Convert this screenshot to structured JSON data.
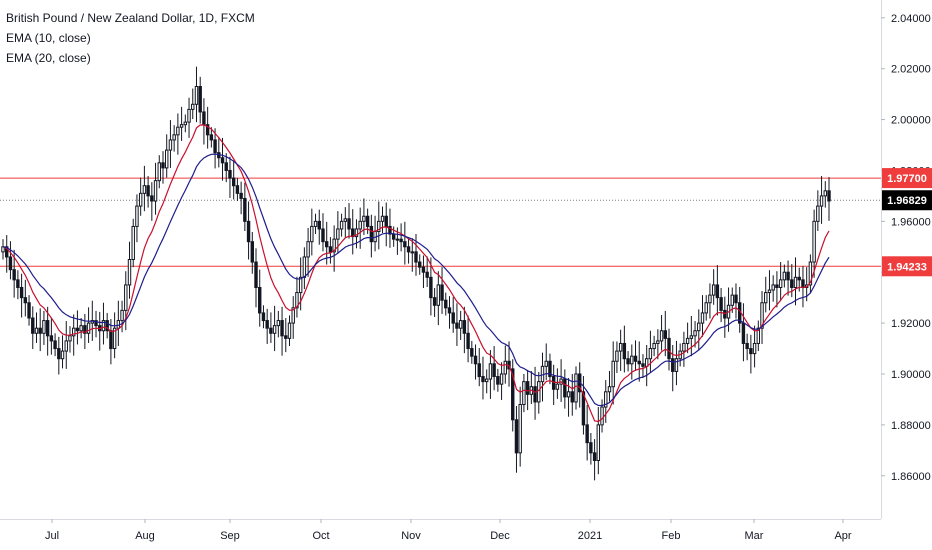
{
  "legend": {
    "title": "British Pound / New Zealand Dollar, 1D, FXCM",
    "ema10": "EMA (10, close)",
    "ema20": "EMA (20, close)"
  },
  "colors": {
    "up": "#131722",
    "down": "#131722",
    "ema10": "#c8102e",
    "ema20": "#1f1d8c",
    "level_line": "#ef3c3c",
    "last_price_badge": "#000000",
    "level_badge": "#ef3c3c"
  },
  "chart_data": {
    "type": "candlestick",
    "symbol": "GBPNZD",
    "timeframe": "1D",
    "ylim": [
      1.843,
      2.047
    ],
    "y_ticks": [
      "2.04000",
      "2.02000",
      "2.00000",
      "1.98000",
      "1.96000",
      "1.94000",
      "1.92000",
      "1.90000",
      "1.88000",
      "1.86000"
    ],
    "x_ticks": [
      "Jul",
      "Aug",
      "Sep",
      "Oct",
      "Nov",
      "Dec",
      "2021",
      "Feb",
      "Mar",
      "Apr"
    ],
    "last_price": "1.96829",
    "horizontal_levels": [
      {
        "label": "1.97700",
        "value": 1.977
      },
      {
        "label": "1.94233",
        "value": 1.94233
      }
    ],
    "series": [
      {
        "name": "EMA (10, close)",
        "period": 10
      },
      {
        "name": "EMA (20, close)",
        "period": 20
      }
    ],
    "closes": [
      1.95,
      1.946,
      1.941,
      1.937,
      1.934,
      1.93,
      1.928,
      1.922,
      1.916,
      1.918,
      1.916,
      1.921,
      1.915,
      1.913,
      1.91,
      1.906,
      1.909,
      1.913,
      1.915,
      1.918,
      1.917,
      1.919,
      1.916,
      1.92,
      1.921,
      1.919,
      1.917,
      1.921,
      1.917,
      1.91,
      1.918,
      1.921,
      1.925,
      1.935,
      1.945,
      1.958,
      1.966,
      1.971,
      1.974,
      1.97,
      1.968,
      1.976,
      1.983,
      1.981,
      1.988,
      1.992,
      1.994,
      1.997,
      1.998,
      1.999,
      2.004,
      2.006,
      2.013,
      2.003,
      1.998,
      1.994,
      1.992,
      1.987,
      1.985,
      1.983,
      1.98,
      1.977,
      1.974,
      1.971,
      1.969,
      1.96,
      1.952,
      1.944,
      1.934,
      1.924,
      1.921,
      1.918,
      1.916,
      1.919,
      1.921,
      1.915,
      1.914,
      1.92,
      1.926,
      1.932,
      1.938,
      1.946,
      1.952,
      1.958,
      1.96,
      1.957,
      1.952,
      1.95,
      1.948,
      1.953,
      1.957,
      1.96,
      1.961,
      1.957,
      1.954,
      1.957,
      1.96,
      1.962,
      1.958,
      1.952,
      1.956,
      1.96,
      1.962,
      1.958,
      1.955,
      1.953,
      1.953,
      1.952,
      1.95,
      1.948,
      1.948,
      1.944,
      1.942,
      1.94,
      1.938,
      1.93,
      1.927,
      1.935,
      1.929,
      1.926,
      1.924,
      1.92,
      1.918,
      1.921,
      1.916,
      1.91,
      1.907,
      1.904,
      1.899,
      1.897,
      1.898,
      1.904,
      1.899,
      1.896,
      1.9,
      1.905,
      1.902,
      1.882,
      1.869,
      1.888,
      1.897,
      1.892,
      1.895,
      1.889,
      1.897,
      1.903,
      1.905,
      1.899,
      1.894,
      1.896,
      1.898,
      1.891,
      1.893,
      1.889,
      1.9,
      1.893,
      1.88,
      1.873,
      1.869,
      1.866,
      1.88,
      1.887,
      1.893,
      1.895,
      1.905,
      1.909,
      1.912,
      1.906,
      1.904,
      1.907,
      1.905,
      1.904,
      1.903,
      1.906,
      1.91,
      1.912,
      1.913,
      1.917,
      1.914,
      1.906,
      1.901,
      1.906,
      1.909,
      1.912,
      1.914,
      1.915,
      1.917,
      1.92,
      1.924,
      1.928,
      1.931,
      1.935,
      1.93,
      1.925,
      1.922,
      1.927,
      1.931,
      1.928,
      1.92,
      1.912,
      1.91,
      1.908,
      1.912,
      1.918,
      1.928,
      1.932,
      1.933,
      1.935,
      1.934,
      1.937,
      1.94,
      1.937,
      1.934,
      1.938,
      1.937,
      1.934,
      1.935,
      1.944,
      1.96,
      1.966,
      1.97,
      1.972,
      1.968
    ]
  }
}
